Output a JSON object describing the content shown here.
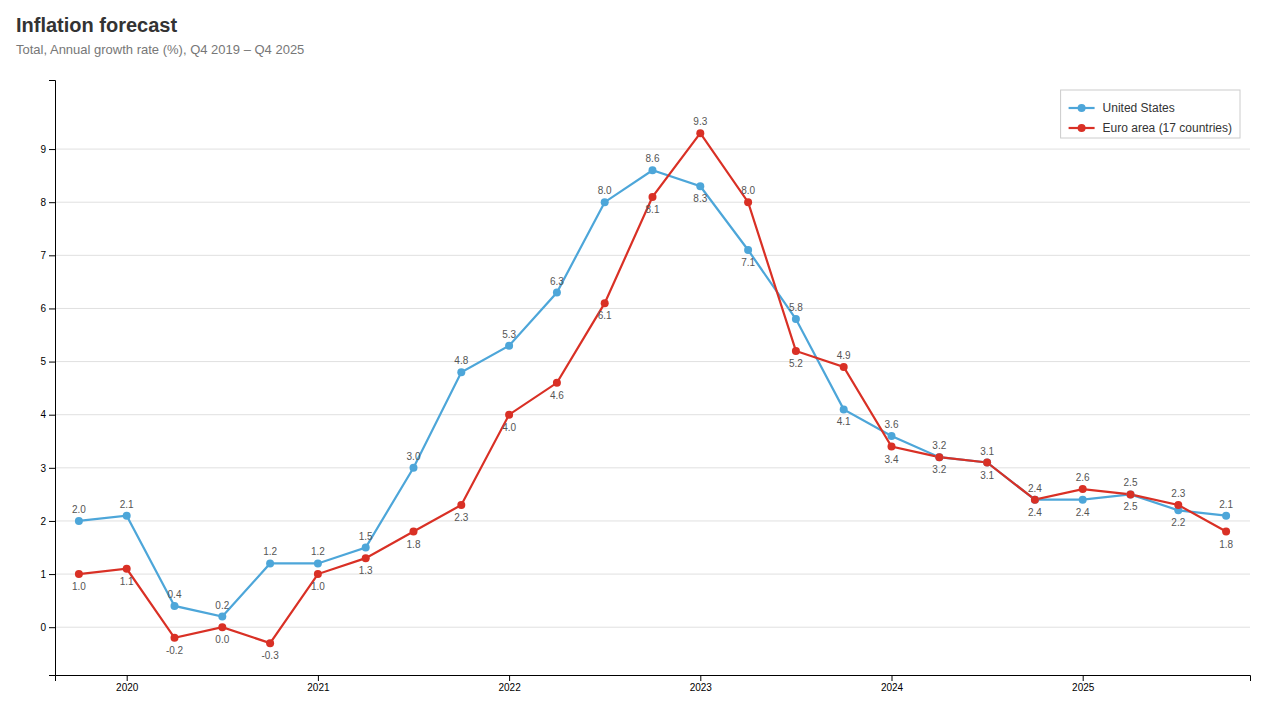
{
  "chart_data": {
    "type": "line",
    "title": "Inflation forecast",
    "subtitle": "Total, Annual growth rate (%), Q4 2019 – Q4 2025",
    "categories": [
      null,
      "2020",
      null,
      null,
      null,
      "2021",
      null,
      null,
      null,
      "2022",
      null,
      null,
      null,
      "2023",
      null,
      null,
      null,
      "2024",
      null,
      null,
      null,
      "2025",
      null,
      null,
      null
    ],
    "series": [
      {
        "name": "United States",
        "color": "#4da6d9",
        "marker": "circle",
        "values": [
          2.0,
          2.1,
          0.4,
          0.2,
          1.2,
          1.2,
          1.5,
          3.0,
          4.8,
          5.3,
          6.3,
          8.0,
          8.6,
          8.3,
          7.1,
          5.8,
          4.1,
          3.6,
          3.2,
          3.1,
          2.4,
          2.4,
          2.5,
          2.2,
          2.1
        ],
        "value_labels": [
          "2.0",
          "2.1",
          "0.4",
          "0.2",
          "1.2",
          "1.2",
          "1.5",
          "3.0",
          "4.8",
          "5.3",
          "6.3",
          "8.0",
          "8.6",
          "8.3",
          "7.1",
          "5.8",
          "4.1",
          "3.6",
          "3.2",
          "3.1",
          "2.4",
          "2.4",
          "2.5",
          "2.2",
          "2.1"
        ]
      },
      {
        "name": "Euro area (17 countries)",
        "color": "#d93025",
        "marker": "circle",
        "values": [
          1.0,
          1.1,
          -0.2,
          0.0,
          -0.3,
          1.0,
          1.3,
          1.8,
          2.3,
          4.0,
          4.6,
          6.1,
          8.1,
          9.3,
          8.0,
          5.2,
          4.9,
          3.4,
          3.2,
          3.1,
          2.4,
          2.6,
          2.5,
          2.3,
          1.8
        ],
        "value_labels": [
          "1.0",
          "1.1",
          "-0.2",
          "0.0",
          "-0.3",
          "1.0",
          "1.3",
          "1.8",
          "2.3",
          "4.0",
          "4.6",
          "6.1",
          "8.1",
          "9.3",
          "8.0",
          "5.2",
          "4.9",
          "3.4",
          "3.2",
          "3.1",
          "2.4",
          "2.6",
          "2.5",
          "2.3",
          "1.8"
        ]
      }
    ],
    "ylim": [
      -0.9,
      10.3
    ],
    "yticks": [
      0,
      1,
      2,
      3,
      4,
      5,
      6,
      7,
      8,
      9
    ],
    "grid": true,
    "legend": "upper right",
    "data_labels": true
  }
}
